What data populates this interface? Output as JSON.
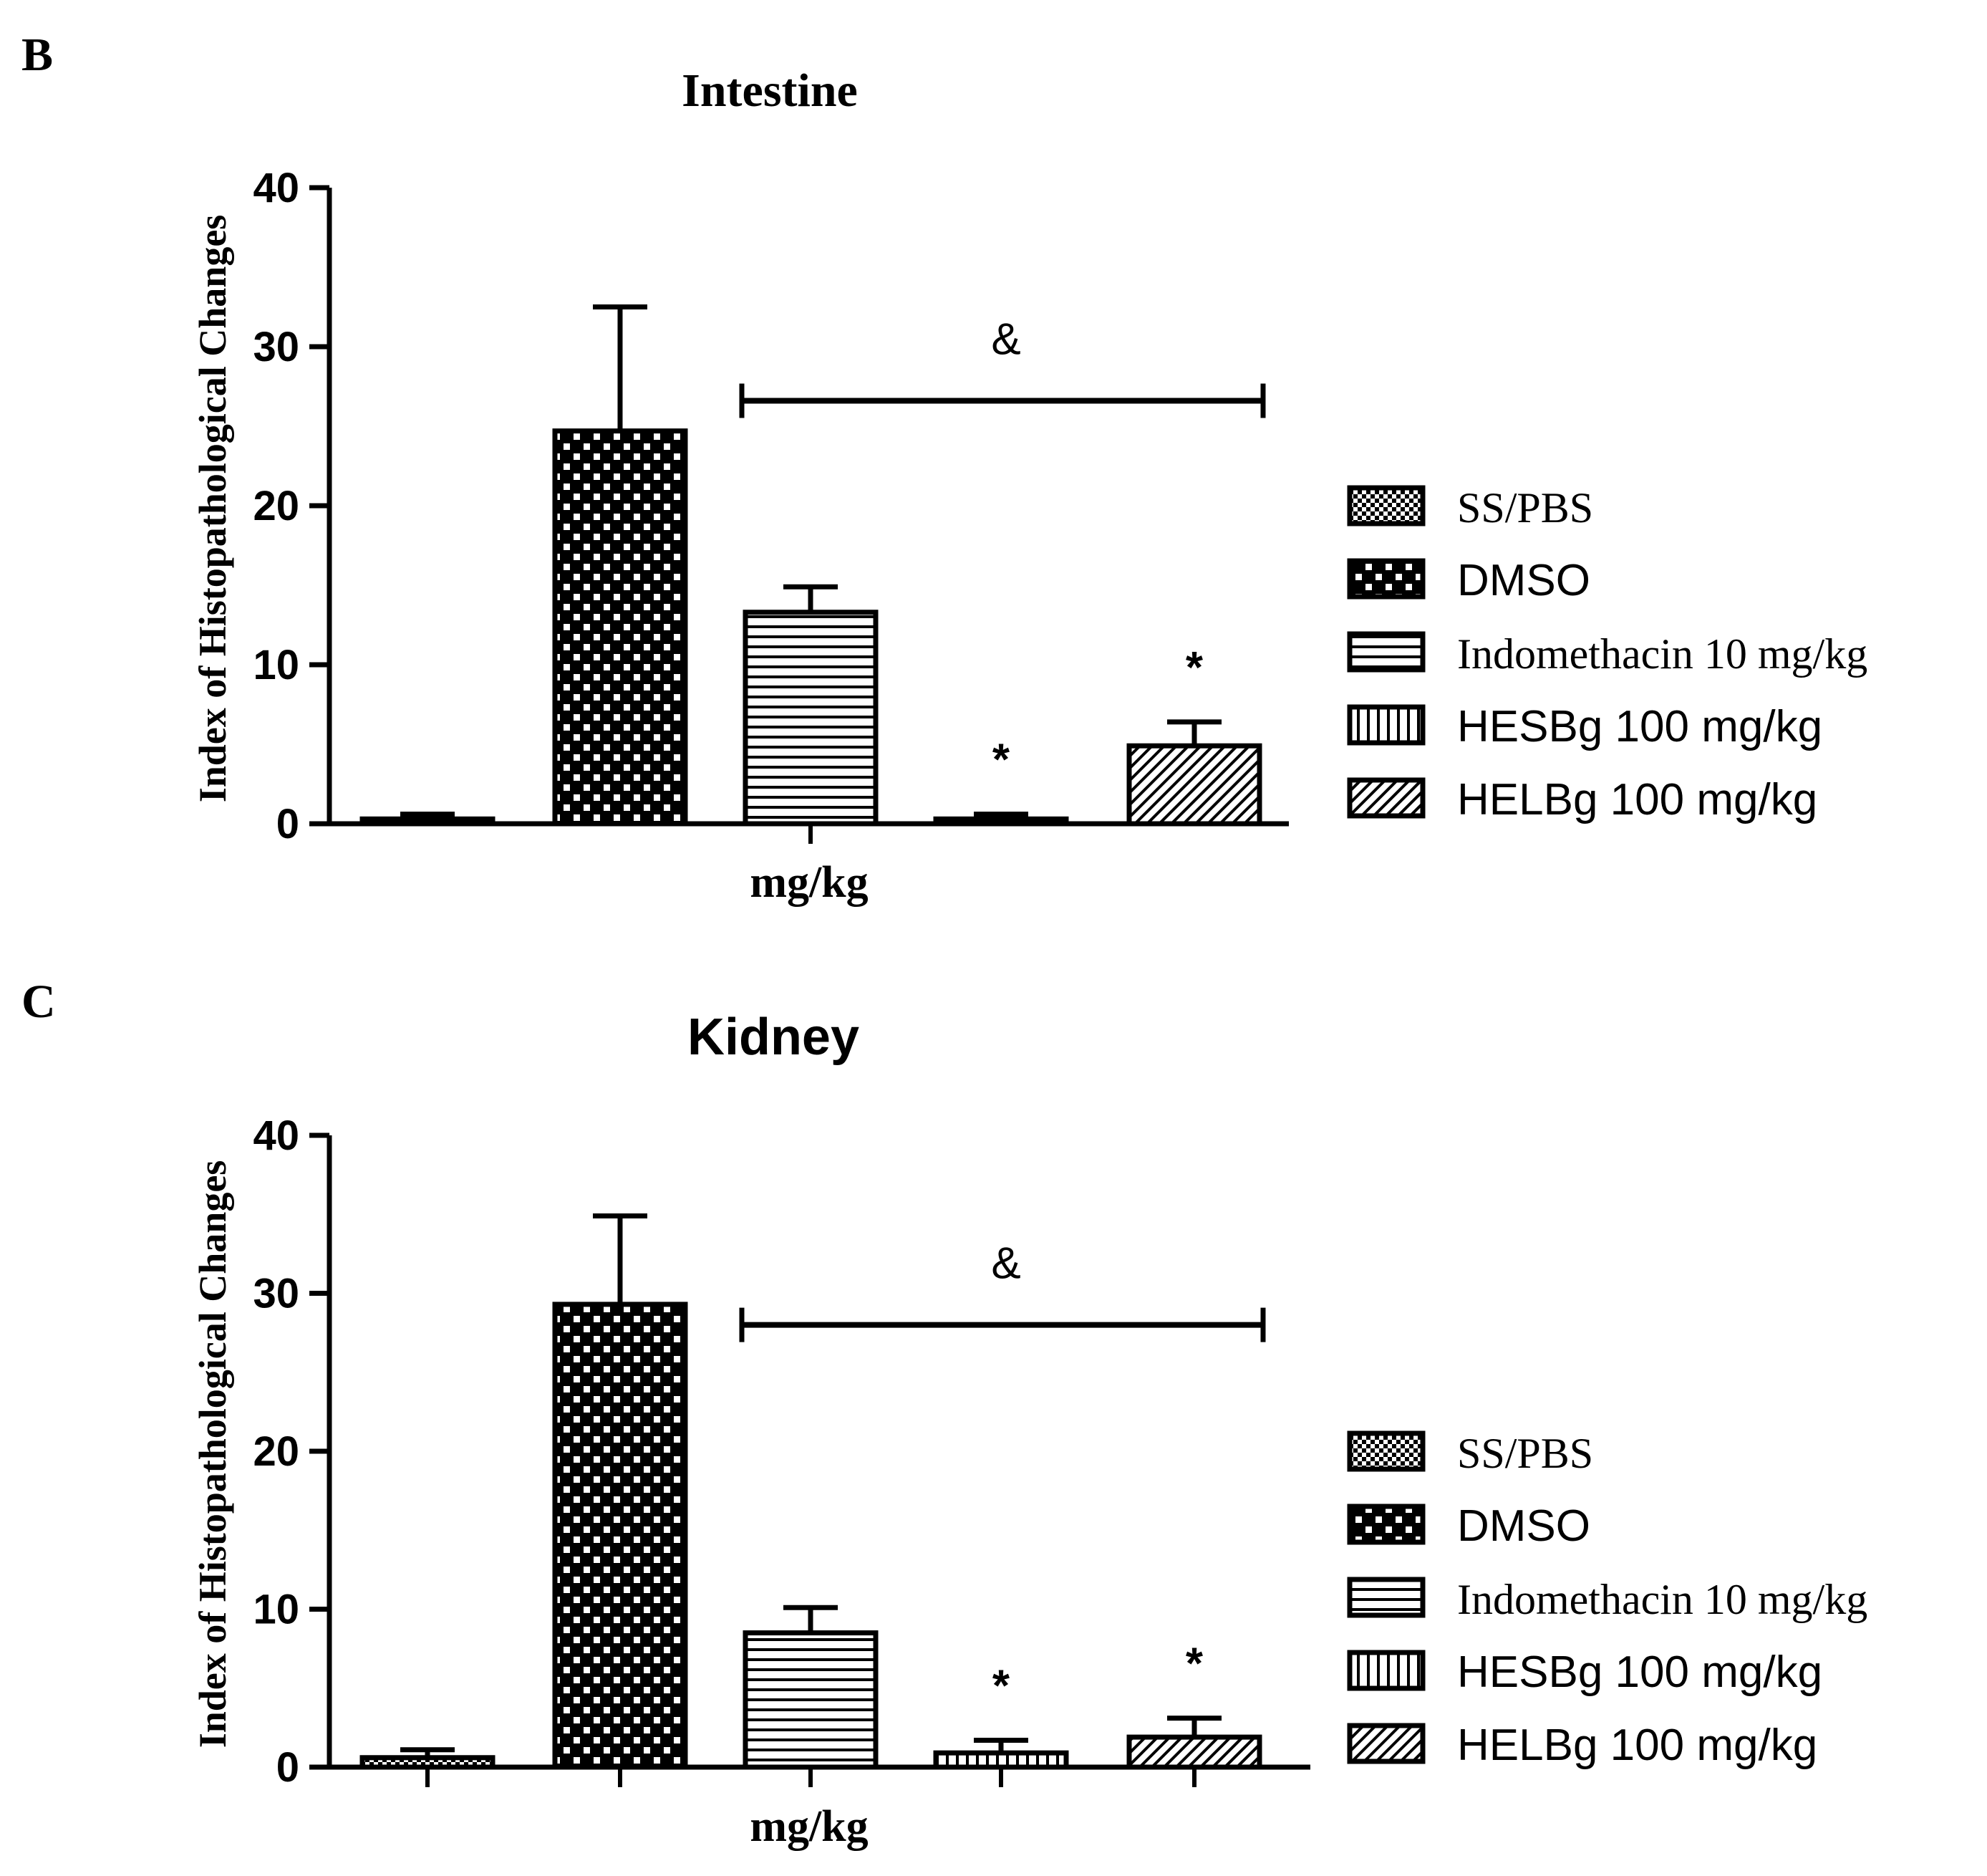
{
  "chart_data": [
    {
      "type": "bar",
      "panel": "B",
      "title": "Intestine",
      "xlabel": "mg/kg",
      "ylabel": "Index of Histopathological Changes",
      "ylim": [
        0,
        40
      ],
      "yticks": [
        "0",
        "10",
        "20",
        "30",
        "40"
      ],
      "categories": [
        "SS/PBS",
        "DMSO",
        "Indomethacin 10 mg/kg",
        "HESBg 100 mg/kg",
        "HELBg 100 mg/kg"
      ],
      "values": [
        0.3,
        24.7,
        13.3,
        0.3,
        4.9
      ],
      "errors": [
        0.3,
        7.8,
        1.6,
        0.3,
        1.5
      ],
      "annotations": [
        "",
        "",
        "",
        "*",
        "*"
      ],
      "bracket": {
        "label": "&",
        "from": 2,
        "to": 4,
        "y": 26.6
      },
      "legend": [
        "SS/PBS",
        "DMSO",
        "Indomethacin 10 mg/kg",
        "HESBg 100 mg/kg",
        "HELBg 100 mg/kg"
      ]
    },
    {
      "type": "bar",
      "panel": "C",
      "title": "Kidney",
      "xlabel": "mg/kg",
      "ylabel": "Index of Histopathological Changes",
      "ylim": [
        0,
        40
      ],
      "yticks": [
        "0",
        "10",
        "20",
        "30",
        "40"
      ],
      "categories": [
        "SS/PBS",
        "DMSO",
        "Indomethacin 10 mg/kg",
        "HESBg 100 mg/kg",
        "HELBg 100 mg/kg"
      ],
      "values": [
        0.6,
        29.3,
        8.5,
        0.9,
        1.9
      ],
      "errors": [
        0.5,
        5.6,
        1.6,
        0.8,
        1.2
      ],
      "annotations": [
        "",
        "",
        "",
        "*",
        "*"
      ],
      "bracket": {
        "label": "&",
        "from": 2,
        "to": 4,
        "y": 28.0
      },
      "legend": [
        "SS/PBS",
        "DMSO",
        "Indomethacin 10 mg/kg",
        "HESBg 100 mg/kg",
        "HELBg 100 mg/kg"
      ]
    }
  ]
}
